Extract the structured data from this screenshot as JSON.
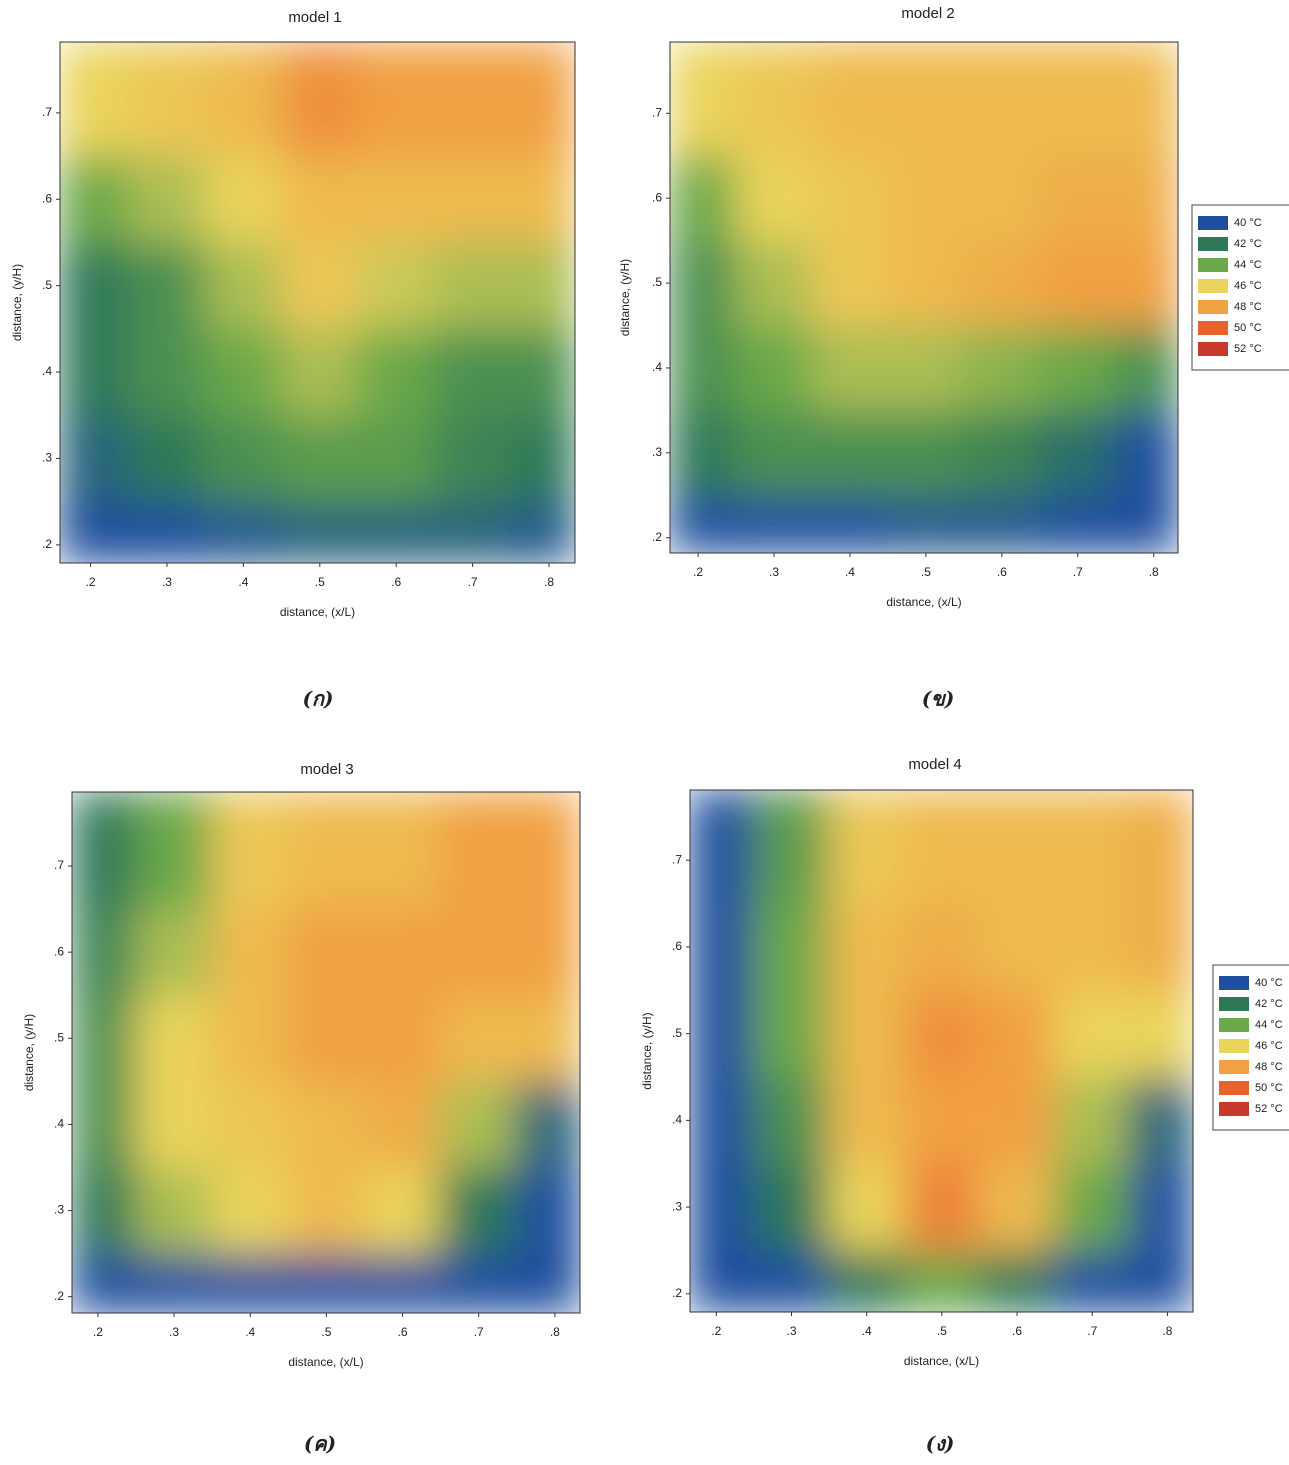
{
  "chart_data": [
    {
      "type": "heatmap",
      "title": "model 1",
      "xlabel": "distance, (x/L)",
      "ylabel": "distance, (y/H)",
      "caption": "(ก)",
      "xlim": [
        0.16,
        0.834
      ],
      "ylim": [
        0.179,
        0.782
      ],
      "xticks": [
        {
          "value": 0.2,
          "label": ".2"
        },
        {
          "value": 0.3,
          "label": ".3"
        },
        {
          "value": 0.4,
          "label": ".4"
        },
        {
          "value": 0.5,
          "label": ".5"
        },
        {
          "value": 0.6,
          "label": ".6"
        },
        {
          "value": 0.7,
          "label": ".7"
        },
        {
          "value": 0.8,
          "label": ".8"
        }
      ],
      "yticks": [
        {
          "value": 0.2,
          "label": ".2"
        },
        {
          "value": 0.3,
          "label": ".3"
        },
        {
          "value": 0.4,
          "label": ".4"
        },
        {
          "value": 0.5,
          "label": ".5"
        },
        {
          "value": 0.6,
          "label": ".6"
        },
        {
          "value": 0.7,
          "label": ".7"
        }
      ],
      "x": [
        0.2,
        0.3,
        0.4,
        0.5,
        0.6,
        0.7,
        0.8
      ],
      "y": [
        0.2,
        0.3,
        0.4,
        0.5,
        0.6,
        0.7
      ],
      "z": [
        [
          40,
          40,
          40.5,
          41,
          41,
          41,
          40.5
        ],
        [
          41,
          42,
          43,
          43.5,
          43.5,
          42.5,
          42
        ],
        [
          42,
          43,
          44,
          45,
          44,
          43,
          43
        ],
        [
          42,
          43,
          45,
          46.5,
          45.5,
          45,
          45
        ],
        [
          44,
          45,
          46,
          47,
          47,
          47,
          47
        ],
        [
          46,
          46.5,
          47,
          48.5,
          48,
          48,
          48
        ]
      ]
    },
    {
      "type": "heatmap",
      "title": "model 2",
      "xlabel": "distance, (x/L)",
      "ylabel": "distance, (y/H)",
      "caption": "(ข)",
      "xlim": [
        0.163,
        0.832
      ],
      "ylim": [
        0.182,
        0.784
      ],
      "xticks": [
        {
          "value": 0.2,
          "label": ".2"
        },
        {
          "value": 0.3,
          "label": ".3"
        },
        {
          "value": 0.4,
          "label": ".4"
        },
        {
          "value": 0.5,
          "label": ".5"
        },
        {
          "value": 0.6,
          "label": ".6"
        },
        {
          "value": 0.7,
          "label": ".7"
        },
        {
          "value": 0.8,
          "label": ".8"
        }
      ],
      "yticks": [
        {
          "value": 0.2,
          "label": ".2"
        },
        {
          "value": 0.3,
          "label": ".3"
        },
        {
          "value": 0.4,
          "label": ".4"
        },
        {
          "value": 0.5,
          "label": ".5"
        },
        {
          "value": 0.6,
          "label": ".6"
        },
        {
          "value": 0.7,
          "label": ".7"
        }
      ],
      "x": [
        0.2,
        0.3,
        0.4,
        0.5,
        0.6,
        0.7,
        0.8
      ],
      "y": [
        0.2,
        0.3,
        0.4,
        0.5,
        0.6,
        0.7
      ],
      "z": [
        [
          40,
          40,
          40,
          40.5,
          40.5,
          40,
          40
        ],
        [
          42,
          43,
          43,
          43,
          42.5,
          41.5,
          40
        ],
        [
          43,
          44,
          45,
          45,
          44.5,
          44,
          43
        ],
        [
          43,
          45,
          46.5,
          47,
          47.5,
          48,
          48
        ],
        [
          44,
          46,
          46.5,
          47,
          47,
          47.5,
          47.5
        ],
        [
          46,
          46.5,
          47,
          47,
          47,
          47,
          47
        ]
      ],
      "legend": [
        {
          "value": 40,
          "label": "40 °C",
          "color": "#1f4e9e"
        },
        {
          "value": 42,
          "label": "42 °C",
          "color": "#2e7858"
        },
        {
          "value": 44,
          "label": "44 °C",
          "color": "#6aa84a"
        },
        {
          "value": 46,
          "label": "46 °C",
          "color": "#ead45c"
        },
        {
          "value": 48,
          "label": "48 °C",
          "color": "#f1a043"
        },
        {
          "value": 50,
          "label": "50 °C",
          "color": "#e8622c"
        },
        {
          "value": 52,
          "label": "52 °C",
          "color": "#c8392b"
        }
      ]
    },
    {
      "type": "heatmap",
      "title": "model 3",
      "xlabel": "distance, (x/L)",
      "ylabel": "distance, (y/H)",
      "caption": "(ค)",
      "xlim": [
        0.166,
        0.833
      ],
      "ylim": [
        0.181,
        0.786
      ],
      "xticks": [
        {
          "value": 0.2,
          "label": ".2"
        },
        {
          "value": 0.3,
          "label": ".3"
        },
        {
          "value": 0.4,
          "label": ".4"
        },
        {
          "value": 0.5,
          "label": ".5"
        },
        {
          "value": 0.6,
          "label": ".6"
        },
        {
          "value": 0.7,
          "label": ".7"
        },
        {
          "value": 0.8,
          "label": ".8"
        }
      ],
      "yticks": [
        {
          "value": 0.2,
          "label": ".2"
        },
        {
          "value": 0.3,
          "label": ".3"
        },
        {
          "value": 0.4,
          "label": ".4"
        },
        {
          "value": 0.5,
          "label": ".5"
        },
        {
          "value": 0.6,
          "label": ".6"
        },
        {
          "value": 0.7,
          "label": ".7"
        }
      ],
      "x": [
        0.2,
        0.3,
        0.4,
        0.5,
        0.6,
        0.7,
        0.8
      ],
      "y": [
        0.2,
        0.3,
        0.4,
        0.5,
        0.6,
        0.7
      ],
      "z": [
        [
          40,
          40,
          40,
          40,
          40,
          40,
          40
        ],
        [
          42,
          45,
          46,
          47,
          46,
          42,
          40
        ],
        [
          43,
          46,
          46.5,
          47,
          47.5,
          45,
          41
        ],
        [
          43,
          46,
          47,
          48,
          48,
          47,
          47
        ],
        [
          42.5,
          45,
          47,
          48,
          48,
          48,
          48
        ],
        [
          42,
          44,
          46.5,
          47,
          47,
          48,
          48
        ]
      ]
    },
    {
      "type": "heatmap",
      "title": "model 4",
      "xlabel": "distance, (x/L)",
      "ylabel": "distance, (y/H)",
      "caption": "(ง)",
      "xlim": [
        0.165,
        0.834
      ],
      "ylim": [
        0.179,
        0.781
      ],
      "xticks": [
        {
          "value": 0.2,
          "label": ".2"
        },
        {
          "value": 0.3,
          "label": ".3"
        },
        {
          "value": 0.4,
          "label": ".4"
        },
        {
          "value": 0.5,
          "label": ".5"
        },
        {
          "value": 0.6,
          "label": ".6"
        },
        {
          "value": 0.7,
          "label": ".7"
        },
        {
          "value": 0.8,
          "label": ".8"
        }
      ],
      "yticks": [
        {
          "value": 0.2,
          "label": ".2"
        },
        {
          "value": 0.3,
          "label": ".3"
        },
        {
          "value": 0.4,
          "label": ".4"
        },
        {
          "value": 0.5,
          "label": ".5"
        },
        {
          "value": 0.6,
          "label": ".6"
        },
        {
          "value": 0.7,
          "label": ".7"
        }
      ],
      "x": [
        0.2,
        0.3,
        0.4,
        0.5,
        0.6,
        0.7,
        0.8
      ],
      "y": [
        0.2,
        0.3,
        0.4,
        0.5,
        0.6,
        0.7
      ],
      "z": [
        [
          40,
          40,
          42,
          44,
          42,
          40,
          40
        ],
        [
          40,
          42,
          46,
          49,
          47,
          44,
          40
        ],
        [
          40,
          43,
          47,
          48,
          48,
          45,
          41
        ],
        [
          40,
          44,
          47,
          48.5,
          48,
          46,
          46
        ],
        [
          40,
          44,
          47,
          47.5,
          47,
          47,
          47.5
        ],
        [
          40,
          43.5,
          46.5,
          47,
          47,
          47,
          47.5
        ]
      ],
      "legend": [
        {
          "value": 40,
          "label": "40 °C",
          "color": "#1f4e9e"
        },
        {
          "value": 42,
          "label": "42 °C",
          "color": "#2e7858"
        },
        {
          "value": 44,
          "label": "44 °C",
          "color": "#6aa84a"
        },
        {
          "value": 46,
          "label": "46 °C",
          "color": "#ead45c"
        },
        {
          "value": 48,
          "label": "48 °C",
          "color": "#f1a043"
        },
        {
          "value": 50,
          "label": "50 °C",
          "color": "#e8622c"
        },
        {
          "value": 52,
          "label": "52 °C",
          "color": "#c8392b"
        }
      ]
    }
  ]
}
